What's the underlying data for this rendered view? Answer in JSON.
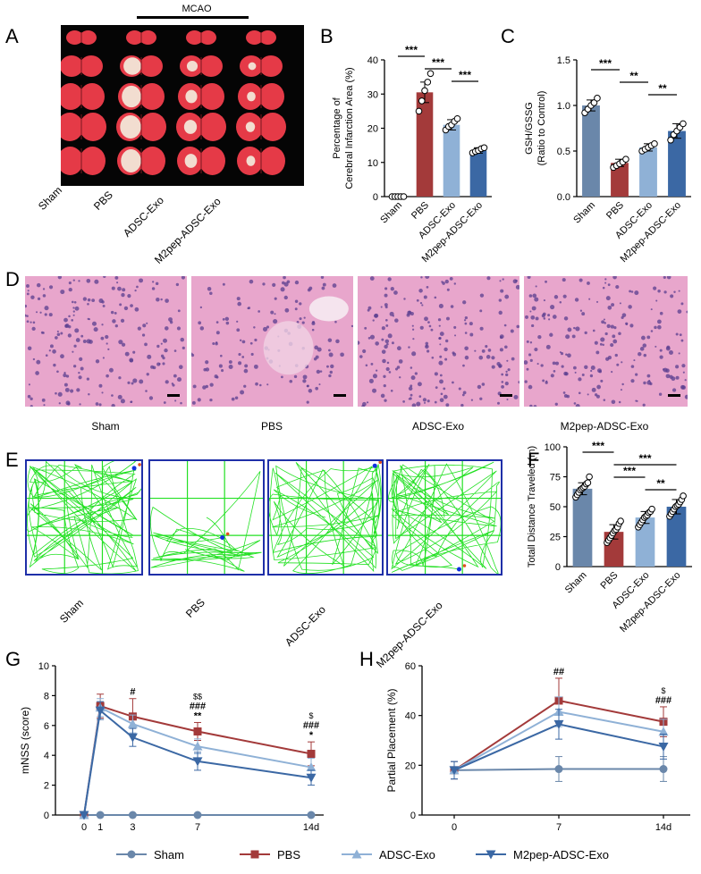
{
  "panel_labels": {
    "a": "A",
    "b": "B",
    "c": "C",
    "d": "D",
    "e": "E",
    "f": "F",
    "g": "G",
    "h": "H"
  },
  "panel_a": {
    "group_label": "MCAO",
    "groups": [
      "Sham",
      "PBS",
      "ADSC-Exo",
      "M2pep-ADSC-Exo"
    ]
  },
  "panel_d": {
    "captions": [
      "Sham",
      "PBS",
      "ADSC-Exo",
      "M2pep-ADSC-Exo"
    ]
  },
  "panel_e": {
    "captions": [
      "Sham",
      "PBS",
      "ADSC-Exo",
      "M2pep-ADSC-Exo"
    ],
    "track_color": "#22e022",
    "border_color": "#1f2fa8"
  },
  "colors": {
    "sham": "#6a87aa",
    "pbs": "#a33a3a",
    "adsc": "#8fb1d6",
    "m2pep": "#3b68a4"
  },
  "chart_data": [
    {
      "id": "B",
      "type": "bar",
      "categories": [
        "Sham",
        "PBS",
        "ADSC-Exo",
        "M2pep-ADSC-Exo"
      ],
      "values": [
        0,
        30.5,
        21,
        13.5
      ],
      "errors": [
        0,
        3.0,
        1.5,
        0.8
      ],
      "points": [
        [
          0,
          0,
          0,
          0,
          0
        ],
        [
          25,
          28,
          31,
          33.5,
          36
        ],
        [
          19.5,
          20.5,
          21,
          22,
          22.8
        ],
        [
          12.8,
          13.2,
          13.5,
          14,
          14.3
        ]
      ],
      "ylabel": "Percentage of\nCerebral Infarction Area (%)",
      "ylim": [
        0,
        40
      ],
      "yticks": [
        0,
        10,
        20,
        30,
        40
      ],
      "significance": [
        {
          "from": 0,
          "to": 1,
          "label": "***"
        },
        {
          "from": 1,
          "to": 2,
          "label": "***"
        },
        {
          "from": 2,
          "to": 3,
          "label": "***"
        }
      ]
    },
    {
      "id": "C",
      "type": "bar",
      "categories": [
        "Sham",
        "PBS",
        "ADSC-Exo",
        "M2pep-ADSC-Exo"
      ],
      "values": [
        1.0,
        0.37,
        0.54,
        0.72
      ],
      "errors": [
        0.06,
        0.04,
        0.04,
        0.08
      ],
      "points": [
        [
          0.92,
          0.96,
          1.0,
          1.03,
          1.08
        ],
        [
          0.32,
          0.34,
          0.36,
          0.38,
          0.41
        ],
        [
          0.5,
          0.52,
          0.54,
          0.56,
          0.58
        ],
        [
          0.62,
          0.68,
          0.72,
          0.76,
          0.8
        ]
      ],
      "ylabel": "GSH/GSSG\n(Ratio to Control)",
      "ylim": [
        0,
        1.5
      ],
      "yticks": [
        "0.0",
        "0.5",
        "1.0",
        "1.5"
      ],
      "significance": [
        {
          "from": 0,
          "to": 1,
          "label": "***"
        },
        {
          "from": 1,
          "to": 2,
          "label": "**"
        },
        {
          "from": 2,
          "to": 3,
          "label": "**"
        }
      ]
    },
    {
      "id": "F",
      "type": "bar",
      "categories": [
        "Sham",
        "PBS",
        "ADSC-Exo",
        "M2pep-ADSC-Exo"
      ],
      "values": [
        65,
        29,
        41,
        50
      ],
      "errors": [
        5,
        6,
        5,
        6
      ],
      "points": [
        [
          58,
          60,
          62,
          64,
          65,
          66,
          67,
          69,
          70,
          75
        ],
        [
          20,
          22,
          24,
          26,
          28,
          30,
          31,
          33,
          36,
          38
        ],
        [
          33,
          35,
          37,
          39,
          41,
          42,
          43,
          45,
          46,
          48
        ],
        [
          42,
          44,
          46,
          48,
          50,
          51,
          52,
          54,
          56,
          59
        ]
      ],
      "ylabel": "Totall Distance Traveled (m)",
      "ylim": [
        0,
        100
      ],
      "yticks": [
        0,
        25,
        50,
        75,
        100
      ],
      "significance": [
        {
          "from": 0,
          "to": 1,
          "label": "***",
          "level": 0
        },
        {
          "from": 1,
          "to": 3,
          "label": "***",
          "level": 1
        },
        {
          "from": 1,
          "to": 2,
          "label": "***",
          "level": 2
        },
        {
          "from": 2,
          "to": 3,
          "label": "**",
          "level": 3
        }
      ]
    },
    {
      "id": "G",
      "type": "line",
      "x": [
        0,
        1,
        3,
        7,
        14
      ],
      "xticklabels": [
        "0",
        "1",
        "3",
        "7",
        "14d"
      ],
      "ylabel": "mNSS (score)",
      "ylim": [
        0,
        10
      ],
      "yticks": [
        0,
        2,
        4,
        6,
        8,
        10
      ],
      "series": [
        {
          "name": "Sham",
          "values": [
            0,
            0,
            0,
            0,
            0
          ],
          "errors": [
            0,
            0,
            0,
            0,
            0
          ],
          "marker": "circle"
        },
        {
          "name": "PBS",
          "values": [
            0,
            7.3,
            6.6,
            5.6,
            4.1
          ],
          "errors": [
            0,
            0.8,
            1.2,
            0.6,
            0.8
          ],
          "marker": "square"
        },
        {
          "name": "ADSC-Exo",
          "values": [
            0,
            7.2,
            6.1,
            4.6,
            3.2
          ],
          "errors": [
            0,
            0.6,
            0.6,
            0.5,
            0.6
          ],
          "marker": "triangle"
        },
        {
          "name": "M2pep-ADSC-Exo",
          "values": [
            0,
            7.0,
            5.2,
            3.6,
            2.5
          ],
          "errors": [
            0,
            0.6,
            0.6,
            0.6,
            0.5
          ],
          "marker": "triangle-down"
        }
      ],
      "annotations": [
        {
          "x": 3,
          "lines": [
            "#"
          ]
        },
        {
          "x": 7,
          "lines": [
            "$$",
            "###",
            "**"
          ]
        },
        {
          "x": 14,
          "lines": [
            "$",
            "###",
            "*"
          ]
        }
      ]
    },
    {
      "id": "H",
      "type": "line",
      "x": [
        0,
        7,
        14
      ],
      "xticklabels": [
        "0",
        "7",
        "14d"
      ],
      "ylabel": "Partial Placement (%)",
      "ylim": [
        0,
        60
      ],
      "yticks": [
        0,
        20,
        40,
        60
      ],
      "series": [
        {
          "name": "Sham",
          "values": [
            18,
            18.5,
            18.5
          ],
          "errors": [
            3.5,
            5,
            5
          ],
          "marker": "circle"
        },
        {
          "name": "PBS",
          "values": [
            18,
            46,
            37.5
          ],
          "errors": [
            3.5,
            9,
            6
          ],
          "marker": "square"
        },
        {
          "name": "ADSC-Exo",
          "values": [
            18,
            41.5,
            33.5
          ],
          "errors": [
            3.5,
            6,
            5
          ],
          "marker": "triangle"
        },
        {
          "name": "M2pep-ADSC-Exo",
          "values": [
            18,
            36.5,
            27.5
          ],
          "errors": [
            3.5,
            6,
            5
          ],
          "marker": "triangle-down"
        }
      ],
      "annotations": [
        {
          "x": 7,
          "lines": [
            "##"
          ]
        },
        {
          "x": 14,
          "lines": [
            "$",
            "###"
          ]
        }
      ]
    }
  ],
  "legend": [
    "Sham",
    "PBS",
    "ADSC-Exo",
    "M2pep-ADSC-Exo"
  ]
}
